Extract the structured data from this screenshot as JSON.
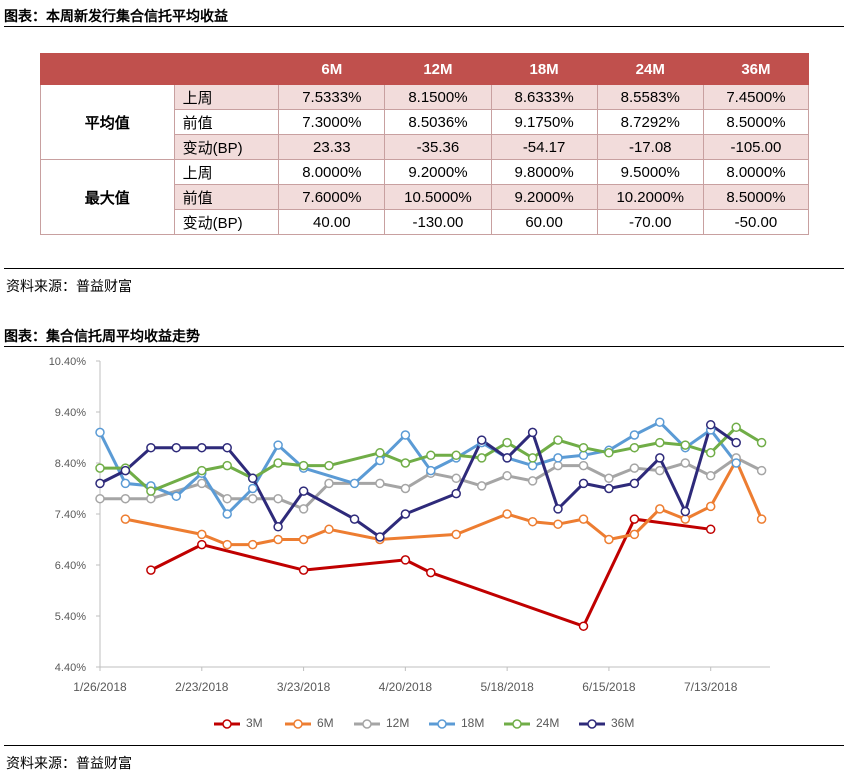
{
  "section1": {
    "title": "图表：本周新发行集合信托平均收益",
    "source": "资料来源：普益财富"
  },
  "table": {
    "columns": [
      "6M",
      "12M",
      "18M",
      "24M",
      "36M"
    ],
    "groups": [
      {
        "name": "平均值",
        "rows": [
          {
            "label": "上周",
            "values": [
              "7.5333%",
              "8.1500%",
              "8.6333%",
              "8.5583%",
              "7.4500%"
            ]
          },
          {
            "label": "前值",
            "values": [
              "7.3000%",
              "8.5036%",
              "9.1750%",
              "8.7292%",
              "8.5000%"
            ]
          },
          {
            "label": "变动(BP)",
            "values": [
              "23.33",
              "-35.36",
              "-54.17",
              "-17.08",
              "-105.00"
            ]
          }
        ]
      },
      {
        "name": "最大值",
        "rows": [
          {
            "label": "上周",
            "values": [
              "8.0000%",
              "9.2000%",
              "9.8000%",
              "9.5000%",
              "8.0000%"
            ]
          },
          {
            "label": "前值",
            "values": [
              "7.6000%",
              "10.5000%",
              "9.2000%",
              "10.2000%",
              "8.5000%"
            ]
          },
          {
            "label": "变动(BP)",
            "values": [
              "40.00",
              "-130.00",
              "60.00",
              "-70.00",
              "-50.00"
            ]
          }
        ]
      }
    ]
  },
  "section2": {
    "title": "图表：集合信托周平均收益走势",
    "source": "资料来源：普益财富"
  },
  "chart_data": {
    "type": "line",
    "x": [
      "1/26/2018",
      "2/2/2018",
      "2/9/2018",
      "2/16/2018",
      "2/23/2018",
      "3/2/2018",
      "3/9/2018",
      "3/16/2018",
      "3/23/2018",
      "3/30/2018",
      "4/6/2018",
      "4/13/2018",
      "4/20/2018",
      "4/27/2018",
      "5/4/2018",
      "5/11/2018",
      "5/18/2018",
      "5/25/2018",
      "6/1/2018",
      "6/8/2018",
      "6/15/2018",
      "6/22/2018",
      "6/29/2018",
      "7/6/2018",
      "7/13/2018",
      "7/20/2018",
      "7/27/2018"
    ],
    "xticks": [
      "1/26/2018",
      "2/23/2018",
      "3/23/2018",
      "4/20/2018",
      "5/18/2018",
      "6/15/2018",
      "7/13/2018"
    ],
    "yticks": [
      "4.40%",
      "5.40%",
      "6.40%",
      "7.40%",
      "8.40%",
      "9.40%",
      "10.40%"
    ],
    "ylim": [
      4.4,
      10.4
    ],
    "grid": false,
    "legend_position": "bottom",
    "series": [
      {
        "name": "3M",
        "color": "#c00000",
        "values": [
          null,
          null,
          6.3,
          null,
          6.8,
          null,
          null,
          null,
          6.3,
          null,
          null,
          null,
          6.5,
          6.25,
          null,
          null,
          null,
          null,
          null,
          5.2,
          null,
          7.3,
          null,
          null,
          7.1,
          null,
          null
        ]
      },
      {
        "name": "6M",
        "color": "#ed7d31",
        "values": [
          null,
          7.3,
          null,
          null,
          7.0,
          6.8,
          6.8,
          6.9,
          6.9,
          7.1,
          null,
          6.9,
          null,
          null,
          7.0,
          null,
          7.4,
          7.25,
          7.2,
          7.3,
          6.9,
          7.0,
          7.5,
          7.3,
          7.55,
          8.45,
          7.3
        ]
      },
      {
        "name": "12M",
        "color": "#a5a5a5",
        "values": [
          7.7,
          7.7,
          7.7,
          null,
          8.0,
          7.7,
          7.7,
          7.7,
          7.5,
          8.0,
          null,
          8.0,
          7.9,
          8.2,
          8.1,
          7.95,
          8.15,
          8.05,
          8.35,
          8.35,
          8.1,
          8.3,
          8.25,
          8.4,
          8.15,
          8.5,
          8.25
        ]
      },
      {
        "name": "18M",
        "color": "#5b9bd5",
        "values": [
          9.0,
          8.0,
          7.95,
          7.75,
          8.2,
          7.4,
          7.9,
          8.75,
          8.3,
          null,
          8.0,
          8.45,
          8.95,
          8.25,
          8.5,
          8.8,
          8.5,
          8.35,
          8.5,
          8.55,
          8.65,
          8.95,
          9.2,
          8.7,
          9.05,
          8.4,
          null
        ]
      },
      {
        "name": "24M",
        "color": "#70ad47",
        "values": [
          8.3,
          8.3,
          7.85,
          null,
          8.25,
          8.35,
          8.1,
          8.4,
          8.35,
          8.35,
          null,
          8.6,
          8.4,
          8.55,
          8.55,
          8.5,
          8.8,
          8.5,
          8.85,
          8.7,
          8.6,
          8.7,
          8.8,
          8.75,
          8.6,
          9.1,
          8.8
        ]
      },
      {
        "name": "36M",
        "color": "#2e2a7a",
        "values": [
          8.0,
          8.25,
          8.7,
          8.7,
          8.7,
          8.7,
          8.1,
          7.15,
          7.85,
          null,
          7.3,
          6.95,
          7.4,
          null,
          7.8,
          8.85,
          8.5,
          9.0,
          7.5,
          8.0,
          7.9,
          8.0,
          8.5,
          7.45,
          9.15,
          8.8,
          null
        ]
      }
    ]
  }
}
